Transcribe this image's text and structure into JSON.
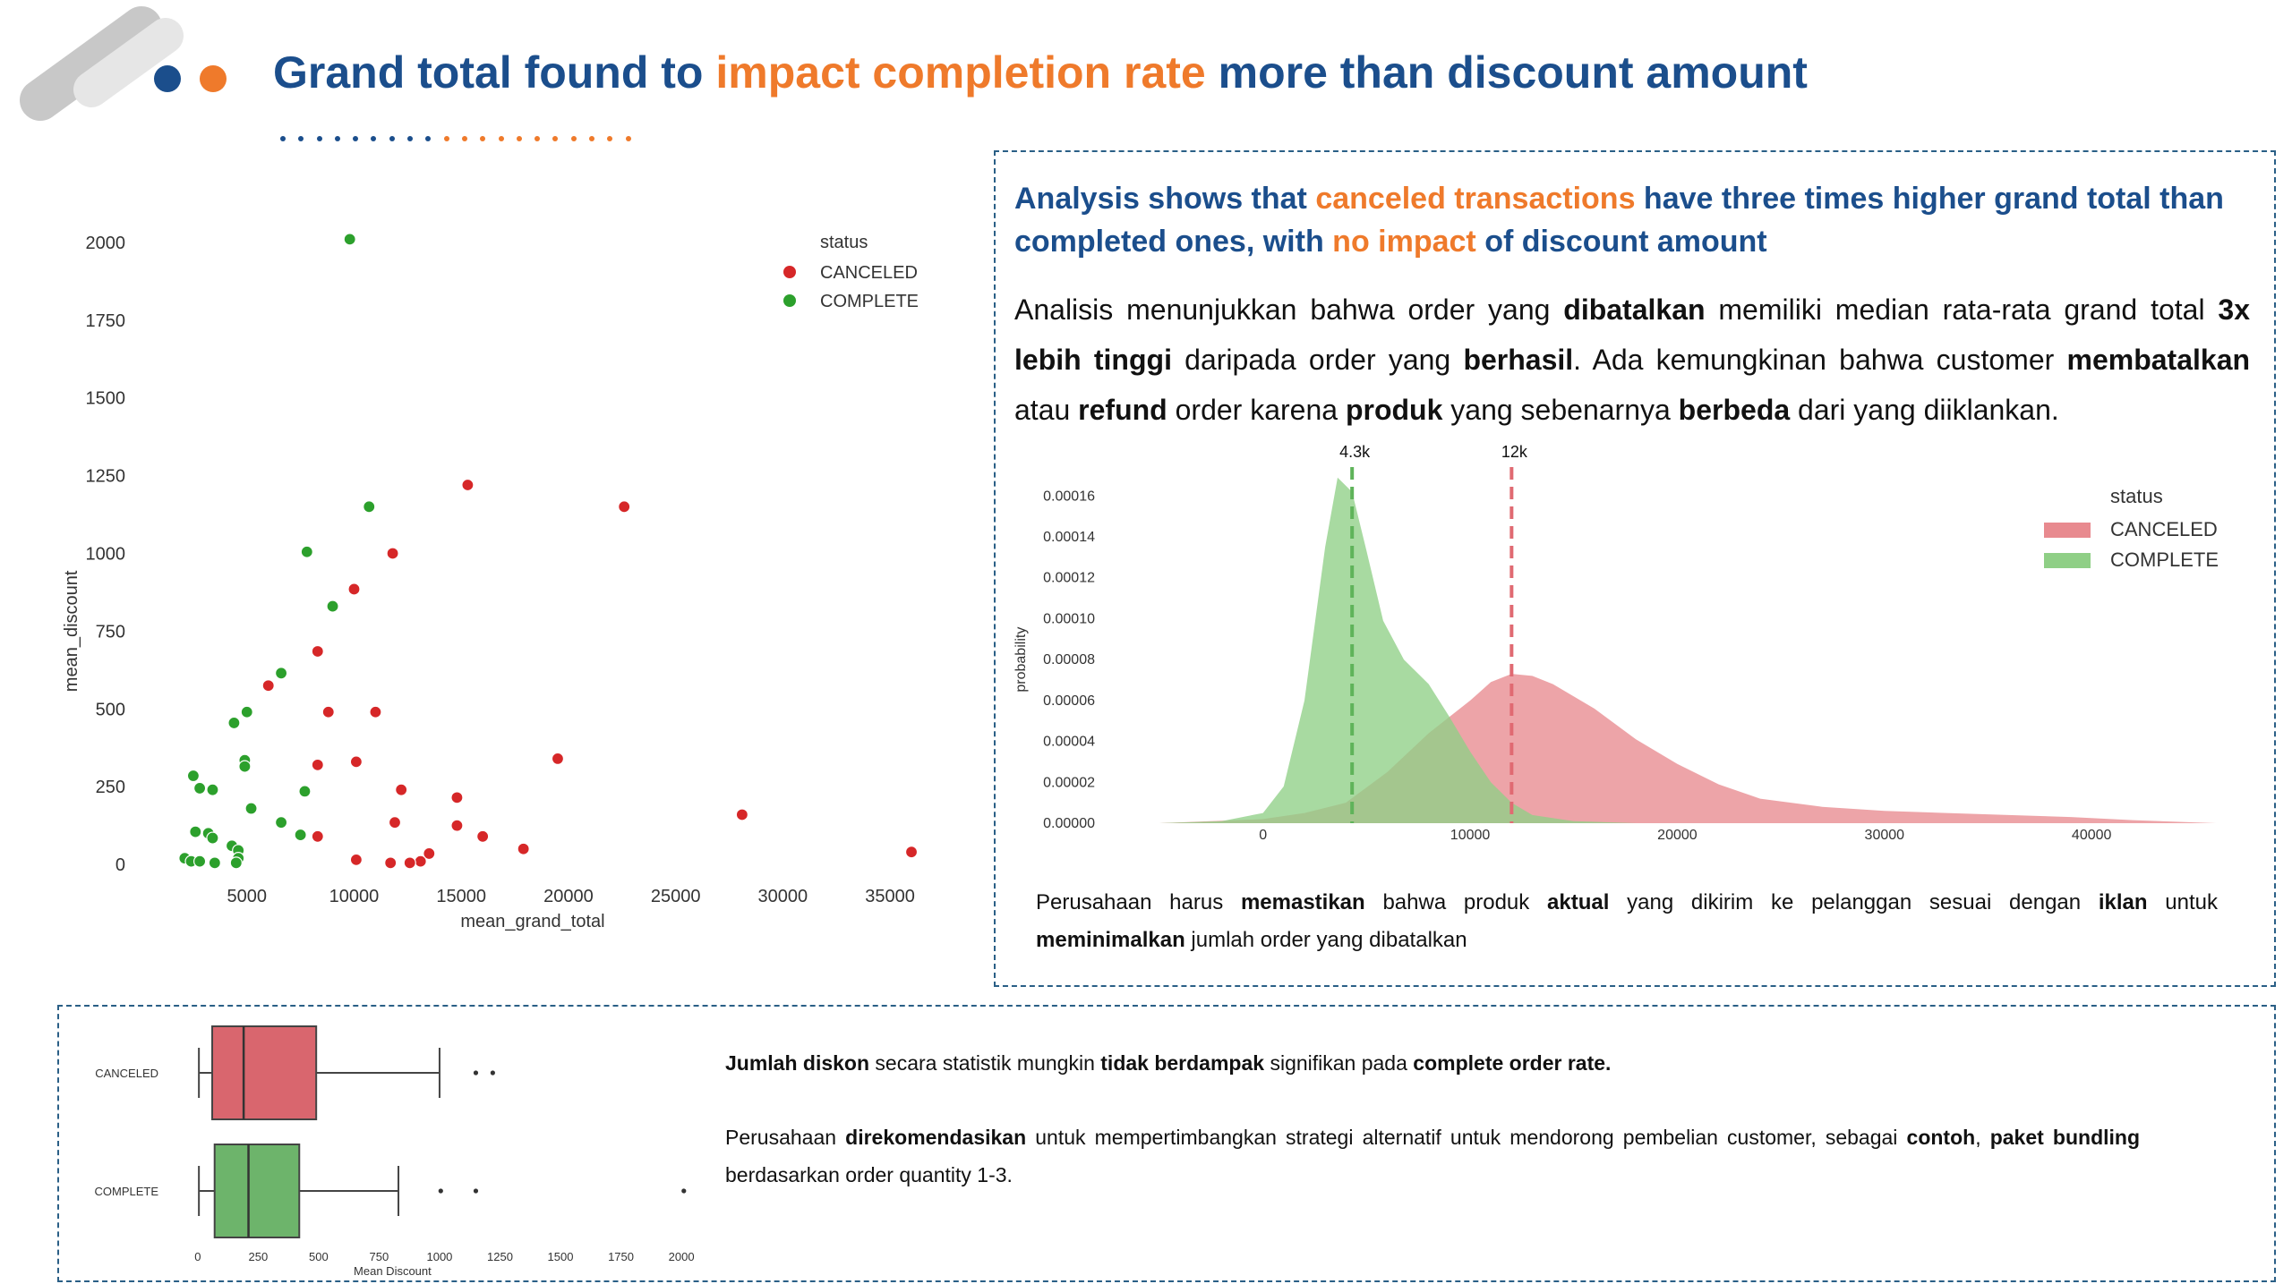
{
  "title": {
    "part1": "Grand total found to ",
    "highlight": "impact completion rate",
    "part2": " more than discount amount"
  },
  "colors": {
    "navy": "#1b4e8c",
    "orange": "#ef7a2b",
    "canceled": "#d62728",
    "complete": "#2ca02c",
    "canceled_fill": "#e88a8f",
    "complete_fill": "#8fcf86"
  },
  "analysis": {
    "headline_p1": "Analysis shows that ",
    "headline_hl1": "canceled transactions",
    "headline_p2": " have three times higher grand total than completed ones, with ",
    "headline_hl2": "no impact",
    "headline_p3": " of discount amount",
    "para": {
      "t1": "Analisis menunjukkan bahwa order yang ",
      "b1": "dibatalkan",
      "t2": " memiliki median rata-rata grand total ",
      "b2": "3x lebih tinggi",
      "t3": " daripada order yang ",
      "b3": "berhasil",
      "t4": ". Ada kemungkinan bahwa customer ",
      "b4": "membatalkan",
      "t5": " atau ",
      "b5": "refund",
      "t6": " order karena ",
      "b6": "produk",
      "t7": " yang sebenarnya ",
      "b7": "berbeda",
      "t8": " dari yang diiklankan."
    },
    "note": {
      "t1": "Perusahaan harus ",
      "b1": "memastikan",
      "t2": " bahwa produk ",
      "b2": "aktual",
      "t3": " yang dikirim ke pelanggan sesuai dengan ",
      "b3": "iklan",
      "t4": " untuk ",
      "b4": "meminimalkan",
      "t5": " jumlah order yang dibatalkan"
    }
  },
  "bottom": {
    "note1": {
      "b1": "Jumlah diskon",
      "t1": " secara statistik mungkin ",
      "b2": "tidak berdampak",
      "t2": " signifikan pada ",
      "b3": "complete order rate."
    },
    "note2": {
      "t1": "Perusahaan ",
      "b1": "direkomendasikan",
      "t2": " untuk mempertimbangkan strategi alternatif untuk mendorong pembelian customer, sebagai ",
      "b2": "contoh",
      "t3": ", ",
      "b3": "paket bundling",
      "t4": " berdasarkan order quantity 1-3."
    }
  },
  "chart_data": [
    {
      "type": "scatter",
      "xlabel": "mean_grand_total",
      "ylabel": "mean_discount",
      "xlim": [
        1000,
        36500
      ],
      "ylim": [
        -40,
        2060
      ],
      "xticks": [
        5000,
        10000,
        15000,
        20000,
        25000,
        30000,
        35000
      ],
      "yticks": [
        0,
        250,
        500,
        750,
        1000,
        1250,
        1500,
        1750,
        2000
      ],
      "legend_title": "status",
      "legend_position": "top-right",
      "grid": false,
      "series": [
        {
          "name": "CANCELED",
          "points": [
            [
              15300,
              1220
            ],
            [
              22600,
              1150
            ],
            [
              11800,
              1000
            ],
            [
              10000,
              885
            ],
            [
              8300,
              685
            ],
            [
              6000,
              575
            ],
            [
              8800,
              490
            ],
            [
              11000,
              490
            ],
            [
              19500,
              340
            ],
            [
              10100,
              330
            ],
            [
              8300,
              320
            ],
            [
              12200,
              240
            ],
            [
              14800,
              215
            ],
            [
              28100,
              160
            ],
            [
              11900,
              135
            ],
            [
              14800,
              125
            ],
            [
              16000,
              90
            ],
            [
              8300,
              90
            ],
            [
              17900,
              50
            ],
            [
              36000,
              40
            ],
            [
              13500,
              35
            ],
            [
              10100,
              15
            ],
            [
              13100,
              10
            ],
            [
              11700,
              5
            ],
            [
              12600,
              5
            ]
          ]
        },
        {
          "name": "COMPLETE",
          "points": [
            [
              9800,
              2010
            ],
            [
              10700,
              1150
            ],
            [
              7800,
              1005
            ],
            [
              9000,
              830
            ],
            [
              6600,
              615
            ],
            [
              5000,
              490
            ],
            [
              4400,
              455
            ],
            [
              4900,
              335
            ],
            [
              4900,
              315
            ],
            [
              2500,
              285
            ],
            [
              2800,
              245
            ],
            [
              3400,
              240
            ],
            [
              7700,
              235
            ],
            [
              5200,
              180
            ],
            [
              6600,
              135
            ],
            [
              2600,
              105
            ],
            [
              3200,
              100
            ],
            [
              3400,
              85
            ],
            [
              7500,
              95
            ],
            [
              4300,
              60
            ],
            [
              4600,
              45
            ],
            [
              4600,
              20
            ],
            [
              2100,
              20
            ],
            [
              2400,
              10
            ],
            [
              2800,
              10
            ],
            [
              3500,
              5
            ],
            [
              4500,
              5
            ]
          ]
        }
      ]
    },
    {
      "type": "area",
      "ylabel": "probability",
      "xlim": [
        -5000,
        46000
      ],
      "ylim": [
        0,
        0.000175
      ],
      "xticks": [
        0,
        10000,
        20000,
        30000,
        40000
      ],
      "yticks": [
        0,
        2e-05,
        4e-05,
        6e-05,
        8e-05,
        0.0001,
        0.00012,
        0.00014,
        0.00016
      ],
      "ytick_labels": [
        "0.00000",
        "0.00002",
        "0.00004",
        "0.00006",
        "0.00008",
        "0.00010",
        "0.00012",
        "0.00014",
        "0.00016"
      ],
      "legend_title": "status",
      "legend_position": "top-right",
      "medians": [
        {
          "series": "COMPLETE",
          "x": 4300,
          "label": "4.3k"
        },
        {
          "series": "CANCELED",
          "x": 12000,
          "label": "12k"
        }
      ],
      "series": [
        {
          "name": "CANCELED",
          "points": [
            [
              -5000,
              0
            ],
            [
              0,
              2e-06
            ],
            [
              2000,
              5e-06
            ],
            [
              4000,
              1e-05
            ],
            [
              6000,
              2.5e-05
            ],
            [
              8000,
              4.4e-05
            ],
            [
              10000,
              6e-05
            ],
            [
              11000,
              6.9e-05
            ],
            [
              12000,
              7.3e-05
            ],
            [
              13000,
              7.2e-05
            ],
            [
              14000,
              6.8e-05
            ],
            [
              16000,
              5.6e-05
            ],
            [
              18000,
              4.1e-05
            ],
            [
              20000,
              2.9e-05
            ],
            [
              22000,
              1.9e-05
            ],
            [
              24000,
              1.2e-05
            ],
            [
              27000,
              8e-06
            ],
            [
              30000,
              6e-06
            ],
            [
              33000,
              5e-06
            ],
            [
              36000,
              4e-06
            ],
            [
              39000,
              3e-06
            ],
            [
              42000,
              1.5e-06
            ],
            [
              46000,
              0
            ]
          ]
        },
        {
          "name": "COMPLETE",
          "points": [
            [
              -5000,
              0
            ],
            [
              -2000,
              1e-06
            ],
            [
              0,
              5e-06
            ],
            [
              1000,
              1.8e-05
            ],
            [
              2000,
              6e-05
            ],
            [
              3000,
              0.000135
            ],
            [
              3600,
              0.000169
            ],
            [
              4300,
              0.000162
            ],
            [
              5000,
              0.000133
            ],
            [
              5800,
              9.9e-05
            ],
            [
              6800,
              8e-05
            ],
            [
              8000,
              6.8e-05
            ],
            [
              9000,
              5.2e-05
            ],
            [
              10000,
              3.5e-05
            ],
            [
              11000,
              2e-05
            ],
            [
              12000,
              1e-05
            ],
            [
              13000,
              4e-06
            ],
            [
              15000,
              1e-06
            ],
            [
              18000,
              0
            ]
          ]
        }
      ]
    },
    {
      "type": "box",
      "xlabel": "Mean Discount",
      "xlim": [
        -40,
        2070
      ],
      "xticks": [
        0,
        250,
        500,
        750,
        1000,
        1250,
        1500,
        1750,
        2000
      ],
      "series": [
        {
          "name": "CANCELED",
          "whisker_low": 5,
          "q1": 60,
          "median": 190,
          "q3": 490,
          "whisker_high": 1000,
          "outliers": [
            1150,
            1220
          ]
        },
        {
          "name": "COMPLETE",
          "whisker_low": 5,
          "q1": 70,
          "median": 210,
          "q3": 420,
          "whisker_high": 830,
          "outliers": [
            1005,
            1150,
            2010
          ]
        }
      ]
    }
  ]
}
